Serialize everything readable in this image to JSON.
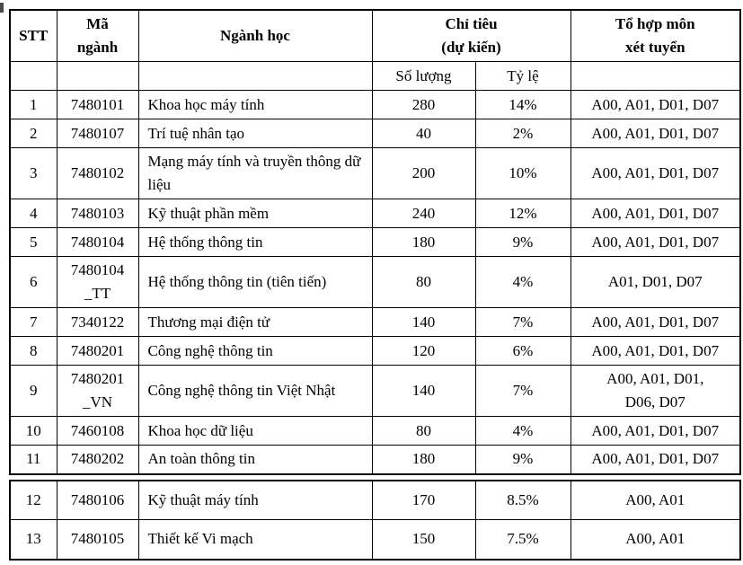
{
  "table": {
    "header": {
      "stt": "STT",
      "ma_nganh": "Mã\nngành",
      "nganh_hoc": "Ngành học",
      "chi_tieu": "Chỉ tiêu\n(dự kiến)",
      "so_luong": "Số lượng",
      "ty_le": "Tỷ lệ",
      "to_hop": "Tổ hợp môn\nxét tuyển"
    },
    "rows": [
      {
        "stt": "1",
        "code": "7480101",
        "name": "Khoa học máy tính",
        "quantity": "280",
        "ratio": "14%",
        "subjects": "A00, A01, D01, D07"
      },
      {
        "stt": "2",
        "code": "7480107",
        "name": "Trí tuệ nhân tạo",
        "quantity": "40",
        "ratio": "2%",
        "subjects": "A00, A01, D01, D07"
      },
      {
        "stt": "3",
        "code": "7480102",
        "name": "Mạng máy tính và truyền thông dữ liệu",
        "quantity": "200",
        "ratio": "10%",
        "subjects": "A00, A01, D01, D07"
      },
      {
        "stt": "4",
        "code": "7480103",
        "name": "Kỹ thuật phần mềm",
        "quantity": "240",
        "ratio": "12%",
        "subjects": "A00, A01, D01, D07"
      },
      {
        "stt": "5",
        "code": "7480104",
        "name": "Hệ thống thông tin",
        "quantity": "180",
        "ratio": "9%",
        "subjects": "A00, A01, D01, D07"
      },
      {
        "stt": "6",
        "code": "7480104\n_TT",
        "name": "Hệ thống thông tin (tiên tiến)",
        "quantity": "80",
        "ratio": "4%",
        "subjects": "A01, D01, D07"
      },
      {
        "stt": "7",
        "code": "7340122",
        "name": "Thương mại điện tử",
        "quantity": "140",
        "ratio": "7%",
        "subjects": "A00, A01, D01, D07"
      },
      {
        "stt": "8",
        "code": "7480201",
        "name": "Công nghệ thông tin",
        "quantity": "120",
        "ratio": "6%",
        "subjects": "A00, A01, D01, D07"
      },
      {
        "stt": "9",
        "code": "7480201\n_VN",
        "name": "Công nghệ thông tin Việt Nhật",
        "quantity": "140",
        "ratio": "7%",
        "subjects": "A00, A01, D01,\nD06, D07"
      },
      {
        "stt": "10",
        "code": "7460108",
        "name": "Khoa học dữ liệu",
        "quantity": "80",
        "ratio": "4%",
        "subjects": "A00, A01, D01, D07"
      },
      {
        "stt": "11",
        "code": "7480202",
        "name": "An toàn thông tin",
        "quantity": "180",
        "ratio": "9%",
        "subjects": "A00, A01, D01, D07"
      }
    ]
  },
  "table2": {
    "rows": [
      {
        "stt": "12",
        "code": "7480106",
        "name": "Kỹ thuật máy tính",
        "quantity": "170",
        "ratio": "8.5%",
        "subjects": "A00, A01"
      },
      {
        "stt": "13",
        "code": "7480105",
        "name": "Thiết kế Vi mạch",
        "quantity": "150",
        "ratio": "7.5%",
        "subjects": "A00, A01"
      }
    ]
  }
}
